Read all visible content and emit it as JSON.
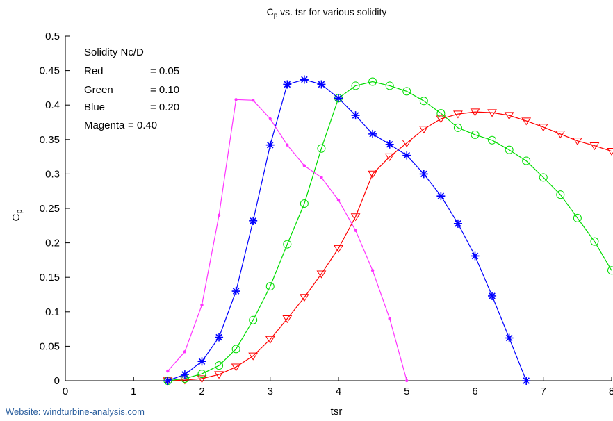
{
  "chart_data": {
    "type": "line",
    "title": "Cp vs. tsr for various solidity",
    "title_main": "C",
    "title_sub": "p",
    "title_rest": " vs. tsr for various solidity",
    "xlabel": "tsr",
    "ylabel_main": "C",
    "ylabel_sub": "p",
    "xlim": [
      0,
      8
    ],
    "ylim": [
      0,
      0.5
    ],
    "xticks": [
      "0",
      "1",
      "2",
      "3",
      "4",
      "5",
      "6",
      "7",
      "8"
    ],
    "yticks": [
      "0",
      "0.05",
      "0.1",
      "0.15",
      "0.2",
      "0.25",
      "0.3",
      "0.35",
      "0.4",
      "0.45",
      "0.5"
    ],
    "grid": false,
    "annotation": {
      "header": "Solidity Nc/D",
      "rows": [
        {
          "name": "Red",
          "value": "= 0.05"
        },
        {
          "name": "Green",
          "value": "= 0.10"
        },
        {
          "name": "Blue",
          "value": "= 0.20"
        },
        {
          "name": "Magenta",
          "value": "= 0.40"
        }
      ]
    },
    "series": [
      {
        "color": "#ff0000",
        "marker": "triangle-down",
        "x": [
          1.5,
          1.75,
          2.0,
          2.25,
          2.5,
          2.75,
          3.0,
          3.25,
          3.5,
          3.75,
          4.0,
          4.25,
          4.5,
          4.75,
          5.0,
          5.25,
          5.5,
          5.75,
          6.0,
          6.25,
          6.5,
          6.75,
          7.0,
          7.25,
          7.5,
          7.75,
          8.0
        ],
        "y": [
          0.0,
          0.001,
          0.003,
          0.009,
          0.02,
          0.036,
          0.06,
          0.09,
          0.121,
          0.155,
          0.192,
          0.238,
          0.3,
          0.325,
          0.345,
          0.365,
          0.38,
          0.387,
          0.39,
          0.389,
          0.385,
          0.377,
          0.368,
          0.358,
          0.348,
          0.341,
          0.333
        ]
      },
      {
        "color": "#00dd00",
        "marker": "circle",
        "x": [
          1.5,
          1.75,
          2.0,
          2.25,
          2.5,
          2.75,
          3.0,
          3.25,
          3.5,
          3.75,
          4.0,
          4.25,
          4.5,
          4.75,
          5.0,
          5.25,
          5.5,
          5.75,
          6.0,
          6.25,
          6.5,
          6.75,
          7.0,
          7.25,
          7.5,
          7.75,
          8.0
        ],
        "y": [
          0.0,
          0.003,
          0.01,
          0.022,
          0.046,
          0.088,
          0.137,
          0.198,
          0.257,
          0.337,
          0.41,
          0.428,
          0.434,
          0.428,
          0.42,
          0.406,
          0.388,
          0.367,
          0.357,
          0.349,
          0.335,
          0.319,
          0.295,
          0.27,
          0.236,
          0.202,
          0.16
        ]
      },
      {
        "color": "#0000ff",
        "marker": "asterisk",
        "x": [
          1.5,
          1.75,
          2.0,
          2.25,
          2.5,
          2.75,
          3.0,
          3.25,
          3.5,
          3.75,
          4.0,
          4.25,
          4.5,
          4.75,
          5.0,
          5.25,
          5.5,
          5.75,
          6.0,
          6.25,
          6.5,
          6.75
        ],
        "y": [
          0.0,
          0.009,
          0.028,
          0.063,
          0.13,
          0.232,
          0.342,
          0.43,
          0.437,
          0.43,
          0.41,
          0.385,
          0.358,
          0.343,
          0.327,
          0.3,
          0.268,
          0.228,
          0.181,
          0.123,
          0.062,
          0.0
        ]
      },
      {
        "color": "#ff33ff",
        "marker": "dot",
        "x": [
          1.5,
          1.75,
          2.0,
          2.25,
          2.5,
          2.75,
          3.0,
          3.25,
          3.5,
          3.75,
          4.0,
          4.25,
          4.5,
          4.75,
          5.0
        ],
        "y": [
          0.014,
          0.042,
          0.11,
          0.24,
          0.408,
          0.407,
          0.38,
          0.342,
          0.312,
          0.295,
          0.262,
          0.218,
          0.16,
          0.09,
          0.0
        ]
      }
    ]
  },
  "footer": {
    "website": "Website:  windturbine-analysis.com"
  }
}
